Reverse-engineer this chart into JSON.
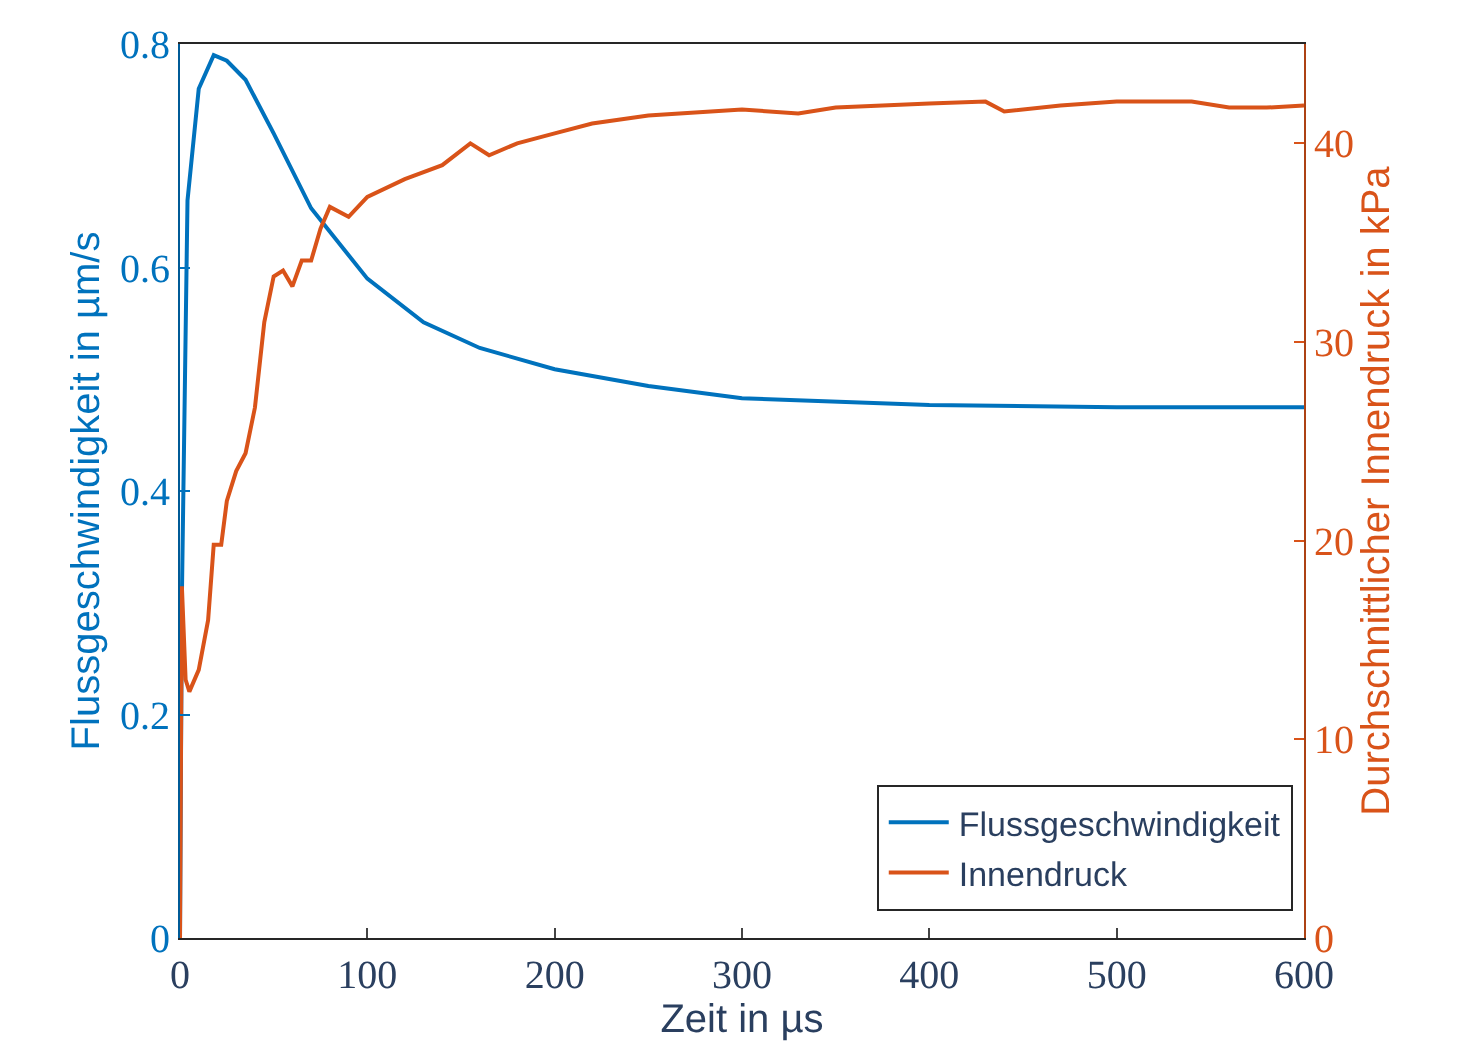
{
  "chart_data": {
    "type": "line",
    "xlabel": "Zeit in µs",
    "ylabel": "Flussgeschwindigkeit in µm/s",
    "y2label": "Durchschnittlicher Innendruck in kPa",
    "xlim": [
      0,
      600
    ],
    "xticks": [
      0,
      100,
      200,
      300,
      400,
      500,
      600
    ],
    "ylim": [
      0,
      0.8
    ],
    "yticks": [
      0,
      0.2,
      0.4,
      0.6,
      0.8
    ],
    "y2lim": [
      0,
      45
    ],
    "y2ticks": [
      0,
      10,
      20,
      30,
      40
    ],
    "legend": "bottom right",
    "series": [
      {
        "name": "Flussgeschwindigkeit",
        "color": "#0072bd",
        "x": [
          0,
          1,
          4,
          10,
          18,
          25,
          35,
          50,
          70,
          100,
          130,
          160,
          200,
          250,
          300,
          400,
          500,
          600
        ],
        "values": [
          0,
          0.305,
          0.66,
          0.76,
          0.79,
          0.785,
          0.768,
          0.72,
          0.653,
          0.59,
          0.551,
          0.528,
          0.509,
          0.494,
          0.483,
          0.477,
          0.475,
          0.475
        ]
      },
      {
        "name": "Innendruck",
        "color": "#d95319",
        "axis": "y2",
        "x": [
          0,
          1,
          3,
          5,
          10,
          15,
          18,
          22,
          25,
          30,
          35,
          40,
          45,
          50,
          55,
          60,
          65,
          70,
          75,
          80,
          90,
          100,
          120,
          140,
          155,
          165,
          180,
          200,
          220,
          250,
          300,
          330,
          350,
          400,
          430,
          440,
          470,
          500,
          540,
          560,
          580,
          600
        ],
        "values": [
          0,
          17.7,
          13,
          12.4,
          13.5,
          16,
          19.8,
          19.8,
          22,
          23.5,
          24.4,
          26.7,
          31,
          33.3,
          33.6,
          32.8,
          34.1,
          34.1,
          35.7,
          36.8,
          36.3,
          37.3,
          38.2,
          38.9,
          40,
          39.4,
          40,
          40.5,
          41,
          41.4,
          41.7,
          41.5,
          41.8,
          42,
          42.1,
          41.6,
          41.9,
          42.1,
          42.1,
          41.8,
          41.8,
          41.9
        ]
      }
    ]
  }
}
